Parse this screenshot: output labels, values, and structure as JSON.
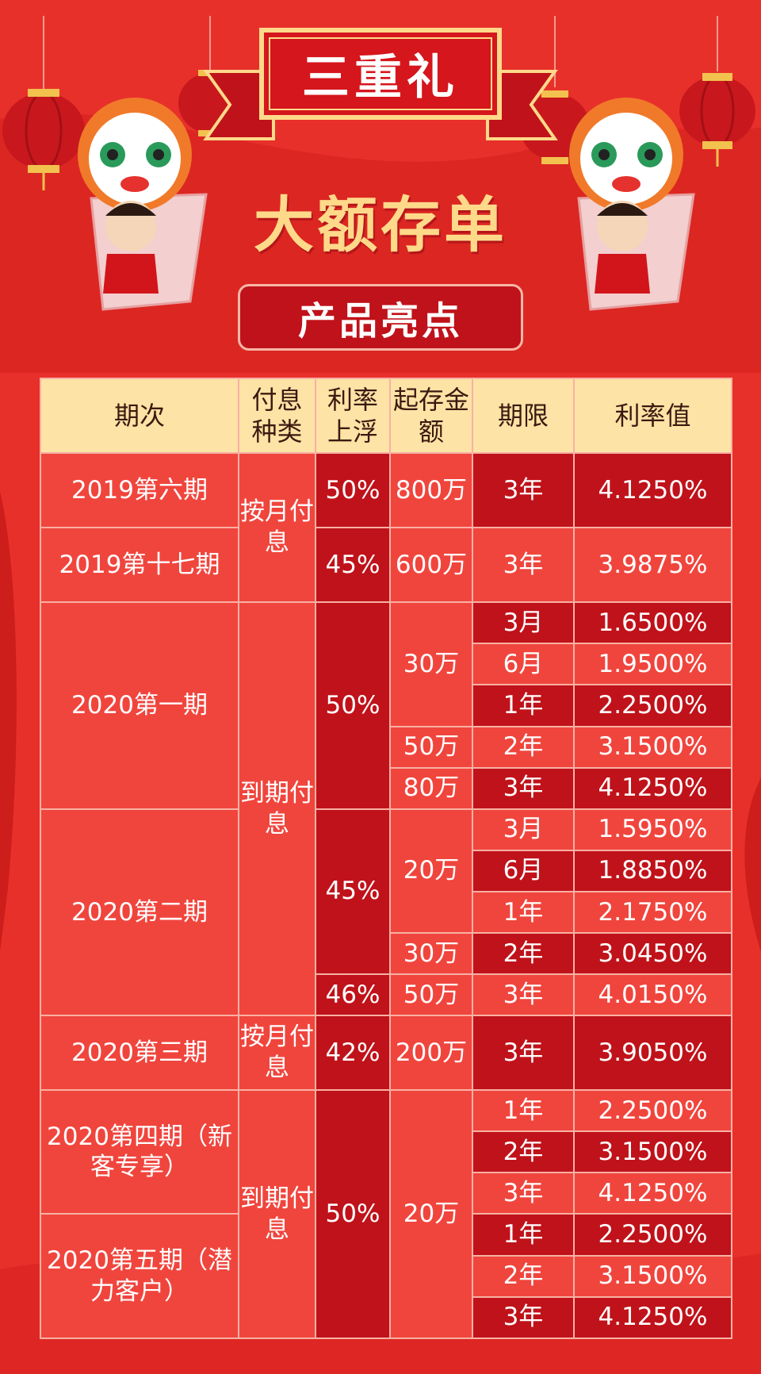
{
  "header": {
    "banner": "三重礼",
    "title": "大额存单",
    "subtitle": "产品亮点"
  },
  "table": {
    "headers": [
      "期次",
      "付息种类",
      "利率上浮",
      "起存金额",
      "期限",
      "利率值"
    ],
    "periods": [
      "2019第六期",
      "2019第十七期",
      "2020第一期",
      "2020第二期",
      "2020第三期",
      "2020第四期（新客专享）",
      "2020第五期（潜力客户）"
    ],
    "interest_types": [
      "按月付息",
      "到期付息",
      "按月付息",
      "到期付息"
    ],
    "float_rates": [
      "50%",
      "45%",
      "50%",
      "45%",
      "46%",
      "42%",
      "50%"
    ],
    "min_amounts": [
      "800万",
      "600万",
      "30万",
      "50万",
      "80万",
      "20万",
      "30万",
      "50万",
      "200万",
      "20万"
    ],
    "rows": [
      {
        "term": "3年",
        "rate": "4.1250%"
      },
      {
        "term": "3年",
        "rate": "3.9875%"
      },
      {
        "term": "3月",
        "rate": "1.6500%"
      },
      {
        "term": "6月",
        "rate": "1.9500%"
      },
      {
        "term": "1年",
        "rate": "2.2500%"
      },
      {
        "term": "2年",
        "rate": "3.1500%"
      },
      {
        "term": "3年",
        "rate": "4.1250%"
      },
      {
        "term": "3月",
        "rate": "1.5950%"
      },
      {
        "term": "6月",
        "rate": "1.8850%"
      },
      {
        "term": "1年",
        "rate": "2.1750%"
      },
      {
        "term": "2年",
        "rate": "3.0450%"
      },
      {
        "term": "3年",
        "rate": "4.0150%"
      },
      {
        "term": "3年",
        "rate": "3.9050%"
      },
      {
        "term": "1年",
        "rate": "2.2500%"
      },
      {
        "term": "2年",
        "rate": "3.1500%"
      },
      {
        "term": "3年",
        "rate": "4.1250%"
      },
      {
        "term": "1年",
        "rate": "2.2500%"
      },
      {
        "term": "2年",
        "rate": "3.1500%"
      },
      {
        "term": "3年",
        "rate": "4.1250%"
      }
    ]
  }
}
